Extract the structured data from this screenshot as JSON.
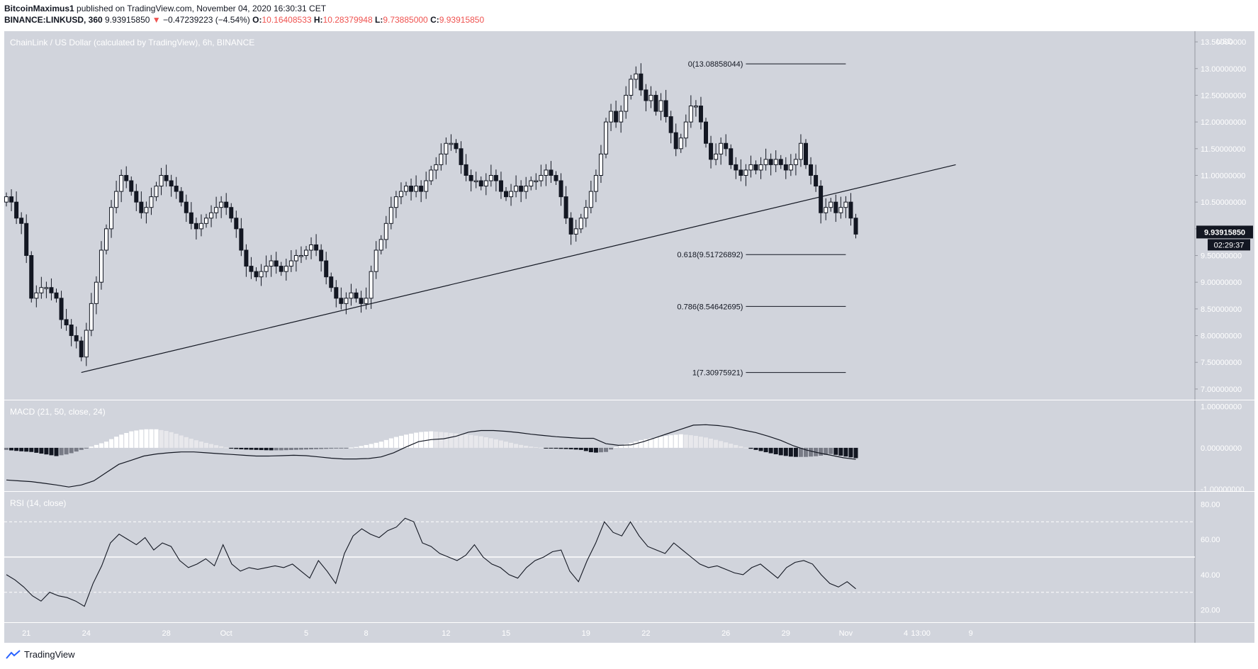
{
  "header": {
    "author": "BitcoinMaximus1",
    "published": "published on TradingView.com, November 04, 2020 16:30:31 CET",
    "symbol": "BINANCE:LINKUSD, 360",
    "last": "9.93915850",
    "change_arrow": "▼",
    "change": "−0.47239223 (−4.54%)",
    "o_label": "O:",
    "o_val": "10.16408533",
    "h_label": "H:",
    "h_val": "10.28379948",
    "l_label": "L:",
    "l_val": "9.73885000",
    "c_label": "C:",
    "c_val": "9.93915850"
  },
  "colors": {
    "pane_bg": "#d1d4dc",
    "axis_bg": "#d1d4dc",
    "price_badge": "#131722",
    "line": "#131722",
    "down_bar": "#131722",
    "up_bar": "#ffffff"
  },
  "chart_data": [
    {
      "type": "candlestick",
      "title": "ChainLink / US Dollar (calculated by TradingView), 6h, BINANCE",
      "currency_label": "USD",
      "ylim": [
        6.8,
        13.7
      ],
      "y_ticks": [
        "7.00000000",
        "7.50000000",
        "8.00000000",
        "8.50000000",
        "9.00000000",
        "9.50000000",
        "10.00000000",
        "10.50000000",
        "11.00000000",
        "11.50000000",
        "12.00000000",
        "12.50000000",
        "13.00000000",
        "13.50000000"
      ],
      "y_tick_values": [
        7.0,
        7.5,
        8.0,
        8.5,
        9.0,
        9.5,
        10.0,
        10.5,
        11.0,
        11.5,
        12.0,
        12.5,
        13.0,
        13.5
      ],
      "x_ticks": [
        {
          "label": "21",
          "bar": 4
        },
        {
          "label": "24",
          "bar": 16
        },
        {
          "label": "28",
          "bar": 32
        },
        {
          "label": "Oct",
          "bar": 44
        },
        {
          "label": "5",
          "bar": 60
        },
        {
          "label": "8",
          "bar": 72
        },
        {
          "label": "12",
          "bar": 88
        },
        {
          "label": "15",
          "bar": 100
        },
        {
          "label": "19",
          "bar": 116
        },
        {
          "label": "22",
          "bar": 128
        },
        {
          "label": "26",
          "bar": 144
        },
        {
          "label": "29",
          "bar": 156
        },
        {
          "label": "Nov",
          "bar": 168
        },
        {
          "label": "4",
          "bar": 180
        },
        {
          "label": "13:00",
          "bar": 183
        },
        {
          "label": "9",
          "bar": 193
        }
      ],
      "closes": [
        10.6,
        10.5,
        10.2,
        10.1,
        9.5,
        8.7,
        8.8,
        8.9,
        8.9,
        8.8,
        8.7,
        8.3,
        8.2,
        8.0,
        7.9,
        7.6,
        8.1,
        8.6,
        9.0,
        9.6,
        10.0,
        10.4,
        10.7,
        11.0,
        10.9,
        10.7,
        10.5,
        10.3,
        10.4,
        10.6,
        10.8,
        11.0,
        10.9,
        10.8,
        10.7,
        10.5,
        10.3,
        10.1,
        10.0,
        10.1,
        10.2,
        10.3,
        10.4,
        10.5,
        10.4,
        10.2,
        10.0,
        9.6,
        9.3,
        9.2,
        9.1,
        9.2,
        9.3,
        9.4,
        9.3,
        9.2,
        9.3,
        9.4,
        9.5,
        9.5,
        9.6,
        9.7,
        9.6,
        9.4,
        9.1,
        8.9,
        8.7,
        8.6,
        8.7,
        8.8,
        8.7,
        8.6,
        8.7,
        9.2,
        9.6,
        9.8,
        10.1,
        10.4,
        10.6,
        10.7,
        10.8,
        10.7,
        10.8,
        10.7,
        10.9,
        11.1,
        11.2,
        11.4,
        11.6,
        11.6,
        11.5,
        11.2,
        11.0,
        10.9,
        10.9,
        10.8,
        10.9,
        11.0,
        10.9,
        10.7,
        10.6,
        10.7,
        10.8,
        10.7,
        10.8,
        10.9,
        10.9,
        11.0,
        11.1,
        11.0,
        10.9,
        10.6,
        10.2,
        9.9,
        10.0,
        10.2,
        10.4,
        10.7,
        11.0,
        11.4,
        12.0,
        12.2,
        12.0,
        12.2,
        12.5,
        12.8,
        12.9,
        12.6,
        12.4,
        12.5,
        12.2,
        12.4,
        12.1,
        11.8,
        11.5,
        11.7,
        12.0,
        12.3,
        12.3,
        12.0,
        11.6,
        11.3,
        11.4,
        11.6,
        11.5,
        11.2,
        11.1,
        11.0,
        11.1,
        11.2,
        11.1,
        11.2,
        11.3,
        11.2,
        11.3,
        11.2,
        11.1,
        11.2,
        11.3,
        11.6,
        11.2,
        11.0,
        10.8,
        10.3,
        10.4,
        10.5,
        10.3,
        10.4,
        10.5,
        10.2,
        9.9
      ],
      "trendline": {
        "from": {
          "bar": 15,
          "price": 7.31
        },
        "to": {
          "bar": 190,
          "price": 11.2
        }
      },
      "fib_levels": [
        {
          "label": "0(13.08858044)",
          "price": 13.08858044
        },
        {
          "label": "0.618(9.51726892)",
          "price": 9.51726892
        },
        {
          "label": "0.786(8.54642695)",
          "price": 8.54642695
        },
        {
          "label": "1(7.30975921)",
          "price": 7.30975921
        }
      ],
      "fib_from_bar": 148,
      "fib_to_bar": 168,
      "last_price": "9.93915850",
      "countdown": "02:29:37"
    },
    {
      "type": "line+histogram",
      "title": "MACD (21, 50, close, 24)",
      "ylim": [
        -1.05,
        1.15
      ],
      "y_ticks": [
        "1.00000000",
        "0.00000000",
        "-1.00000000"
      ],
      "y_tick_values": [
        1.0,
        0.0,
        -1.0
      ],
      "macd": [
        -0.78,
        -0.8,
        -0.82,
        -0.86,
        -0.9,
        -0.95,
        -0.9,
        -0.8,
        -0.6,
        -0.4,
        -0.3,
        -0.2,
        -0.15,
        -0.12,
        -0.1,
        -0.1,
        -0.12,
        -0.14,
        -0.16,
        -0.18,
        -0.2,
        -0.2,
        -0.19,
        -0.18,
        -0.19,
        -0.22,
        -0.25,
        -0.27,
        -0.27,
        -0.26,
        -0.22,
        -0.12,
        0.02,
        0.15,
        0.2,
        0.22,
        0.28,
        0.38,
        0.42,
        0.42,
        0.4,
        0.37,
        0.33,
        0.3,
        0.27,
        0.25,
        0.23,
        0.23,
        0.1,
        0.06,
        0.07,
        0.15,
        0.25,
        0.35,
        0.45,
        0.55,
        0.56,
        0.54,
        0.5,
        0.43,
        0.37,
        0.28,
        0.18,
        0.05,
        -0.05,
        -0.12,
        -0.18,
        -0.24,
        -0.28
      ],
      "hist": [
        -0.05,
        -0.08,
        -0.1,
        -0.15,
        -0.2,
        -0.15,
        -0.05,
        0.05,
        0.15,
        0.3,
        0.4,
        0.45,
        0.45,
        0.4,
        0.3,
        0.2,
        0.12,
        0.05,
        -0.02,
        -0.04,
        -0.05,
        -0.06,
        -0.06,
        -0.05,
        -0.04,
        -0.03,
        -0.02,
        -0.01,
        0.02,
        0.08,
        0.15,
        0.25,
        0.32,
        0.38,
        0.4,
        0.38,
        0.35,
        0.32,
        0.28,
        0.22,
        0.15,
        0.08,
        0.03,
        0.0,
        -0.02,
        -0.03,
        -0.05,
        -0.12,
        -0.1,
        0.05,
        0.12,
        0.2,
        0.25,
        0.3,
        0.33,
        0.3,
        0.25,
        0.18,
        0.1,
        0.02,
        -0.05,
        -0.12,
        -0.18,
        -0.22,
        -0.22,
        -0.2,
        -0.15,
        -0.2,
        -0.25
      ]
    },
    {
      "type": "line",
      "title": "RSI (14, close)",
      "ylim": [
        13,
        87
      ],
      "y_ticks": [
        "20.00",
        "40.00",
        "60.00",
        "80.00"
      ],
      "y_tick_values": [
        20,
        40,
        60,
        80
      ],
      "bands": [
        30,
        50,
        70
      ],
      "values": [
        40,
        37,
        33,
        28,
        25,
        30,
        28,
        27,
        25,
        22,
        35,
        45,
        58,
        63,
        60,
        57,
        61,
        54,
        58,
        56,
        48,
        44,
        46,
        49,
        45,
        57,
        46,
        42,
        44,
        43,
        44,
        45,
        44,
        46,
        42,
        38,
        48,
        42,
        35,
        52,
        62,
        66,
        63,
        61,
        65,
        67,
        72,
        70,
        58,
        56,
        52,
        50,
        48,
        51,
        57,
        50,
        46,
        44,
        40,
        38,
        44,
        48,
        50,
        53,
        54,
        42,
        36,
        48,
        58,
        70,
        64,
        62,
        70,
        62,
        56,
        54,
        52,
        58,
        54,
        50,
        46,
        44,
        45,
        43,
        41,
        40,
        44,
        46,
        42,
        38,
        44,
        47,
        48,
        46,
        40,
        35,
        33,
        36,
        32
      ]
    }
  ],
  "footer": {
    "brand": "TradingView"
  }
}
